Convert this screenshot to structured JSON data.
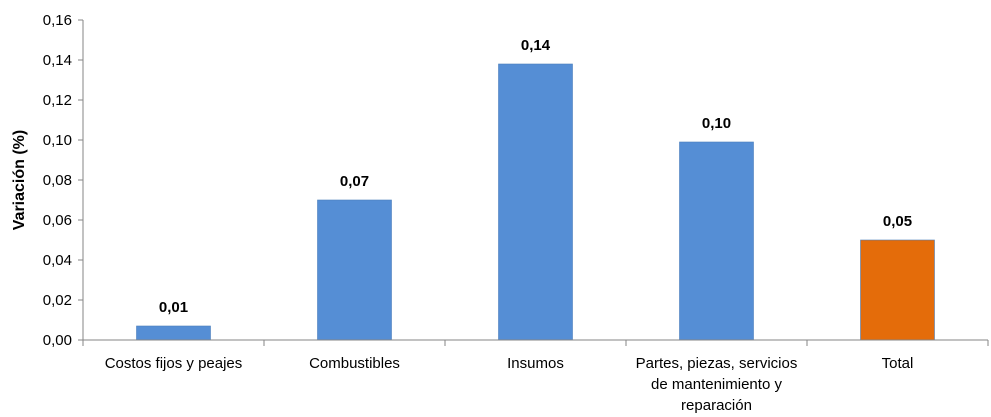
{
  "chart_data": {
    "type": "bar",
    "title": "",
    "xlabel": "",
    "ylabel": "Variación (%)",
    "ylim": [
      0,
      0.16
    ],
    "yticks": [
      "0,00",
      "0,02",
      "0,04",
      "0,06",
      "0,08",
      "0,10",
      "0,12",
      "0,14",
      "0,16"
    ],
    "grid": false,
    "legend": "none",
    "categories": [
      [
        "Costos fijos y peajes"
      ],
      [
        "Combustibles"
      ],
      [
        "Insumos"
      ],
      [
        "Partes, piezas, servicios",
        "de mantenimiento y",
        "reparación"
      ],
      [
        "Total"
      ]
    ],
    "values": [
      0.007,
      0.07,
      0.138,
      0.099,
      0.05
    ],
    "data_labels": [
      "0,01",
      "0,07",
      "0,14",
      "0,10",
      "0,05"
    ],
    "colors": [
      "#558ED5",
      "#558ED5",
      "#558ED5",
      "#558ED5",
      "#E46C0A"
    ]
  }
}
